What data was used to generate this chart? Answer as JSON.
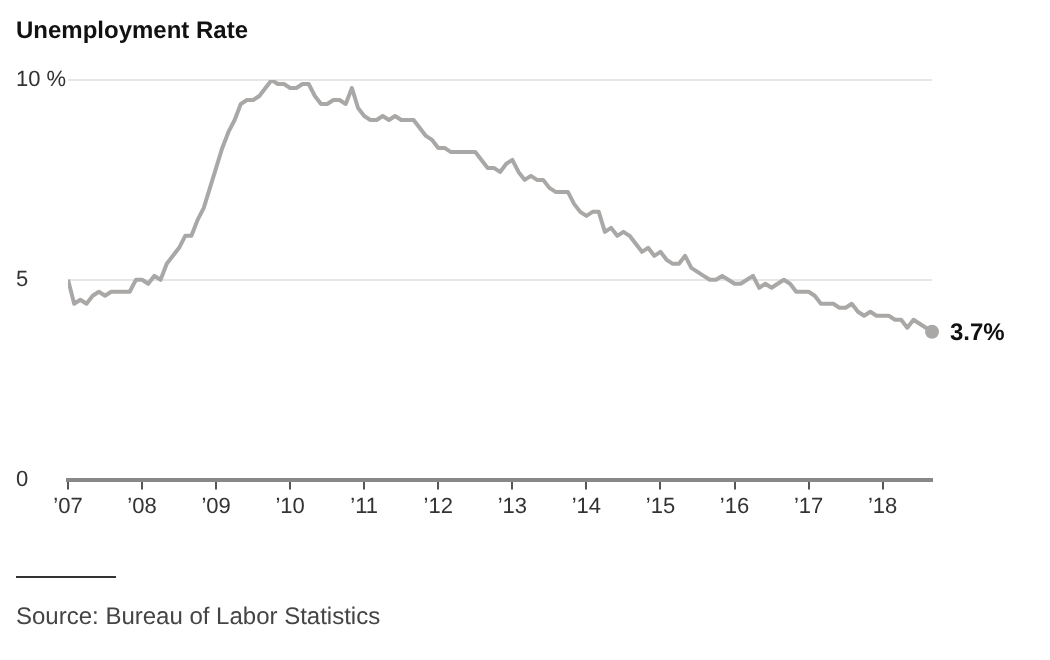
{
  "chart_data": {
    "type": "line",
    "title": "Unemployment Rate",
    "x": [
      "2007-01",
      "2007-02",
      "2007-03",
      "2007-04",
      "2007-05",
      "2007-06",
      "2007-07",
      "2007-08",
      "2007-09",
      "2007-10",
      "2007-11",
      "2007-12",
      "2008-01",
      "2008-02",
      "2008-03",
      "2008-04",
      "2008-05",
      "2008-06",
      "2008-07",
      "2008-08",
      "2008-09",
      "2008-10",
      "2008-11",
      "2008-12",
      "2009-01",
      "2009-02",
      "2009-03",
      "2009-04",
      "2009-05",
      "2009-06",
      "2009-07",
      "2009-08",
      "2009-09",
      "2009-10",
      "2009-11",
      "2009-12",
      "2010-01",
      "2010-02",
      "2010-03",
      "2010-04",
      "2010-05",
      "2010-06",
      "2010-07",
      "2010-08",
      "2010-09",
      "2010-10",
      "2010-11",
      "2010-12",
      "2011-01",
      "2011-02",
      "2011-03",
      "2011-04",
      "2011-05",
      "2011-06",
      "2011-07",
      "2011-08",
      "2011-09",
      "2011-10",
      "2011-11",
      "2011-12",
      "2012-01",
      "2012-02",
      "2012-03",
      "2012-04",
      "2012-05",
      "2012-06",
      "2012-07",
      "2012-08",
      "2012-09",
      "2012-10",
      "2012-11",
      "2012-12",
      "2013-01",
      "2013-02",
      "2013-03",
      "2013-04",
      "2013-05",
      "2013-06",
      "2013-07",
      "2013-08",
      "2013-09",
      "2013-10",
      "2013-11",
      "2013-12",
      "2014-01",
      "2014-02",
      "2014-03",
      "2014-04",
      "2014-05",
      "2014-06",
      "2014-07",
      "2014-08",
      "2014-09",
      "2014-10",
      "2014-11",
      "2014-12",
      "2015-01",
      "2015-02",
      "2015-03",
      "2015-04",
      "2015-05",
      "2015-06",
      "2015-07",
      "2015-08",
      "2015-09",
      "2015-10",
      "2015-11",
      "2015-12",
      "2016-01",
      "2016-02",
      "2016-03",
      "2016-04",
      "2016-05",
      "2016-06",
      "2016-07",
      "2016-08",
      "2016-09",
      "2016-10",
      "2016-11",
      "2016-12",
      "2017-01",
      "2017-02",
      "2017-03",
      "2017-04",
      "2017-05",
      "2017-06",
      "2017-07",
      "2017-08",
      "2017-09",
      "2017-10",
      "2017-11",
      "2017-12",
      "2018-01",
      "2018-02",
      "2018-03",
      "2018-04",
      "2018-05",
      "2018-06",
      "2018-07",
      "2018-08",
      "2018-09"
    ],
    "series": [
      {
        "color": "#aaa8a6",
        "values": [
          5.0,
          4.4,
          4.5,
          4.4,
          4.6,
          4.7,
          4.6,
          4.7,
          4.7,
          4.7,
          4.7,
          5.0,
          5.0,
          4.9,
          5.1,
          5.0,
          5.4,
          5.6,
          5.8,
          6.1,
          6.1,
          6.5,
          6.8,
          7.3,
          7.8,
          8.3,
          8.7,
          9.0,
          9.4,
          9.5,
          9.5,
          9.6,
          9.8,
          10.0,
          9.9,
          9.9,
          9.8,
          9.8,
          9.9,
          9.9,
          9.6,
          9.4,
          9.4,
          9.5,
          9.5,
          9.4,
          9.8,
          9.3,
          9.1,
          9.0,
          9.0,
          9.1,
          9.0,
          9.1,
          9.0,
          9.0,
          9.0,
          8.8,
          8.6,
          8.5,
          8.3,
          8.3,
          8.2,
          8.2,
          8.2,
          8.2,
          8.2,
          8.0,
          7.8,
          7.8,
          7.7,
          7.9,
          8.0,
          7.7,
          7.5,
          7.6,
          7.5,
          7.5,
          7.3,
          7.2,
          7.2,
          7.2,
          6.9,
          6.7,
          6.6,
          6.7,
          6.7,
          6.2,
          6.3,
          6.1,
          6.2,
          6.1,
          5.9,
          5.7,
          5.8,
          5.6,
          5.7,
          5.5,
          5.4,
          5.4,
          5.6,
          5.3,
          5.2,
          5.1,
          5.0,
          5.0,
          5.1,
          5.0,
          4.9,
          4.9,
          5.0,
          5.1,
          4.8,
          4.9,
          4.8,
          4.9,
          5.0,
          4.9,
          4.7,
          4.7,
          4.7,
          4.6,
          4.4,
          4.4,
          4.4,
          4.3,
          4.3,
          4.4,
          4.2,
          4.1,
          4.2,
          4.1,
          4.1,
          4.1,
          4.0,
          4.0,
          3.8,
          4.0,
          3.9,
          3.8,
          3.7
        ]
      }
    ],
    "xlim": [
      "2007-01",
      "2018-09"
    ],
    "xticks": [
      {
        "value": "2007",
        "label": "’07"
      },
      {
        "value": "2008",
        "label": "’08"
      },
      {
        "value": "2009",
        "label": "’09"
      },
      {
        "value": "2010",
        "label": "’10"
      },
      {
        "value": "2011",
        "label": "’11"
      },
      {
        "value": "2012",
        "label": "’12"
      },
      {
        "value": "2013",
        "label": "’13"
      },
      {
        "value": "2014",
        "label": "’14"
      },
      {
        "value": "2015",
        "label": "’15"
      },
      {
        "value": "2016",
        "label": "’16"
      },
      {
        "value": "2017",
        "label": "’17"
      },
      {
        "value": "2018",
        "label": "’18"
      }
    ],
    "ylim": [
      0,
      10
    ],
    "yticks": [
      0,
      5,
      {
        "value": 10,
        "label": "10 %"
      }
    ],
    "grid": "y",
    "legend": false,
    "marker": "none",
    "line_style": "solid",
    "annotations": [
      {
        "text": "3.7%",
        "x": "2018-09",
        "y": 3.7
      },
      "Source: Bureau of Labor Statistics"
    ]
  }
}
